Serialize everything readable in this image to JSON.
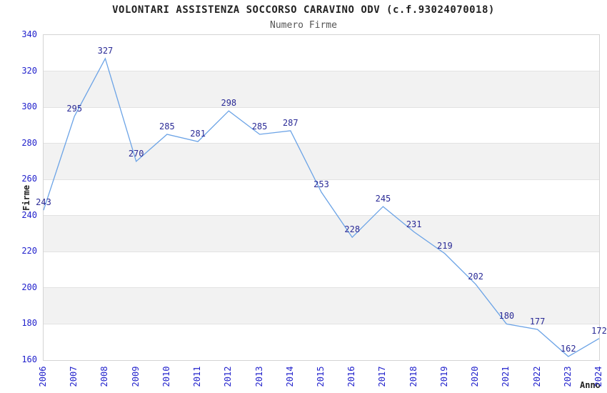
{
  "chart_data": {
    "type": "line",
    "title": "VOLONTARI ASSISTENZA SOCCORSO CARAVINO ODV (c.f.93024070018)",
    "subtitle": "Numero Firme",
    "xlabel": "Anno",
    "ylabel": "Firme",
    "x": [
      2006,
      2007,
      2008,
      2009,
      2010,
      2011,
      2012,
      2013,
      2014,
      2015,
      2016,
      2017,
      2018,
      2019,
      2020,
      2021,
      2022,
      2023,
      2024
    ],
    "series": [
      {
        "name": "Numero Firme",
        "values": [
          243,
          295,
          327,
          270,
          285,
          281,
          298,
          285,
          287,
          253,
          228,
          245,
          231,
          219,
          202,
          180,
          177,
          162,
          172
        ]
      }
    ],
    "ylim": [
      160,
      340
    ],
    "ytick_step": 20,
    "grid": true,
    "alternating_bands": true,
    "legend_position": "none",
    "data_labels_visible": true,
    "colors": {
      "line": "#6ba3e6",
      "data_label": "#2a2a96",
      "tick_label": "#2222cc",
      "band_fill": "#f2f2f2",
      "gridline": "#e2e2e2",
      "frame": "#d4d4d4",
      "title": "#222222",
      "subtitle": "#555555",
      "axis_title": "#222222"
    }
  }
}
